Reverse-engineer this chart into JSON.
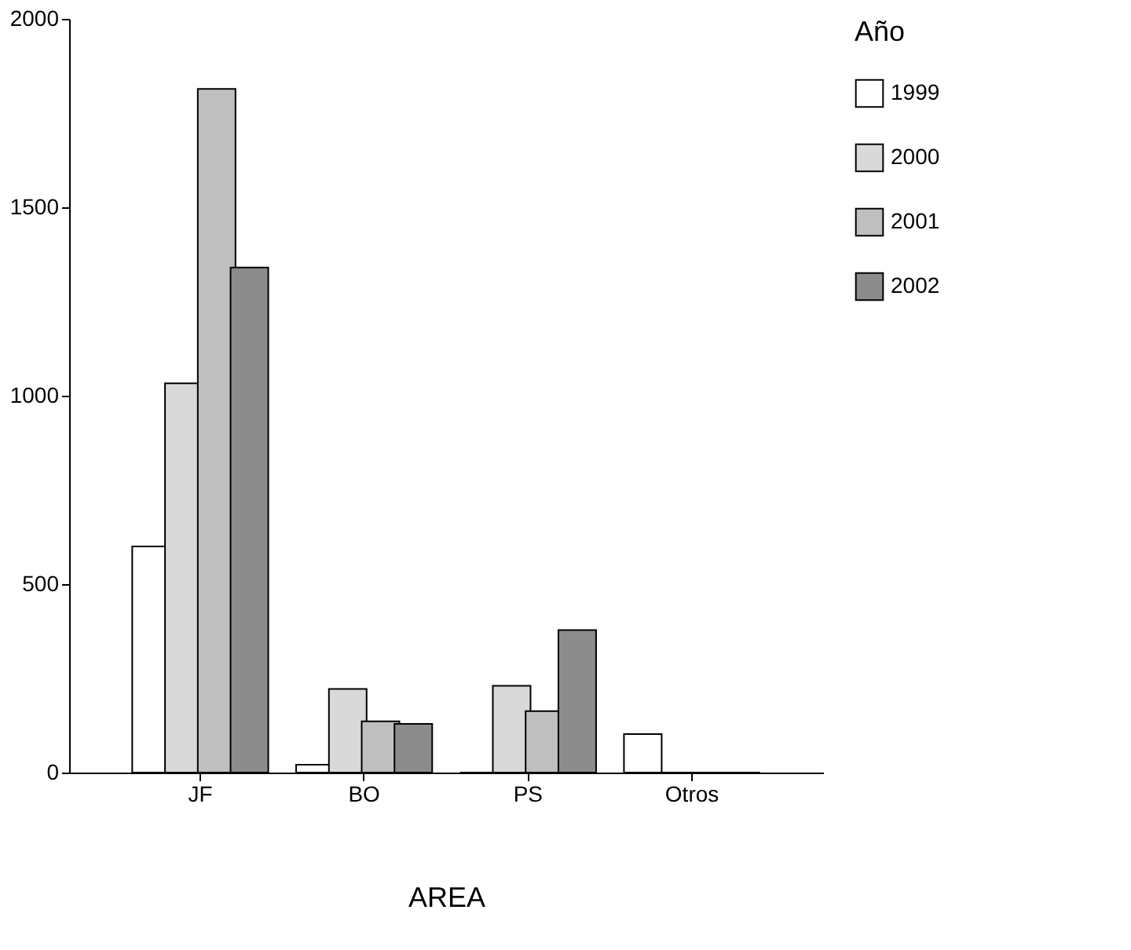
{
  "chart_data": {
    "type": "bar",
    "xlabel": "AREA",
    "legend_title": "Año",
    "categories": [
      "JF",
      "BO",
      "PS",
      "Otros"
    ],
    "series": [
      {
        "name": "1999",
        "color": "#ffffff",
        "values": [
          600,
          21,
          0,
          102
        ]
      },
      {
        "name": "2000",
        "color": "#d9d9d9",
        "values": [
          1033,
          222,
          230,
          0
        ]
      },
      {
        "name": "2001",
        "color": "#bfbfbf",
        "values": [
          1814,
          136,
          163,
          0
        ]
      },
      {
        "name": "2002",
        "color": "#8c8c8c",
        "values": [
          1340,
          129,
          378,
          0
        ]
      }
    ],
    "ylim": [
      0,
      2000
    ],
    "yticks": [
      0,
      500,
      1000,
      1500,
      2000
    ],
    "grid": false,
    "legend": "right"
  }
}
